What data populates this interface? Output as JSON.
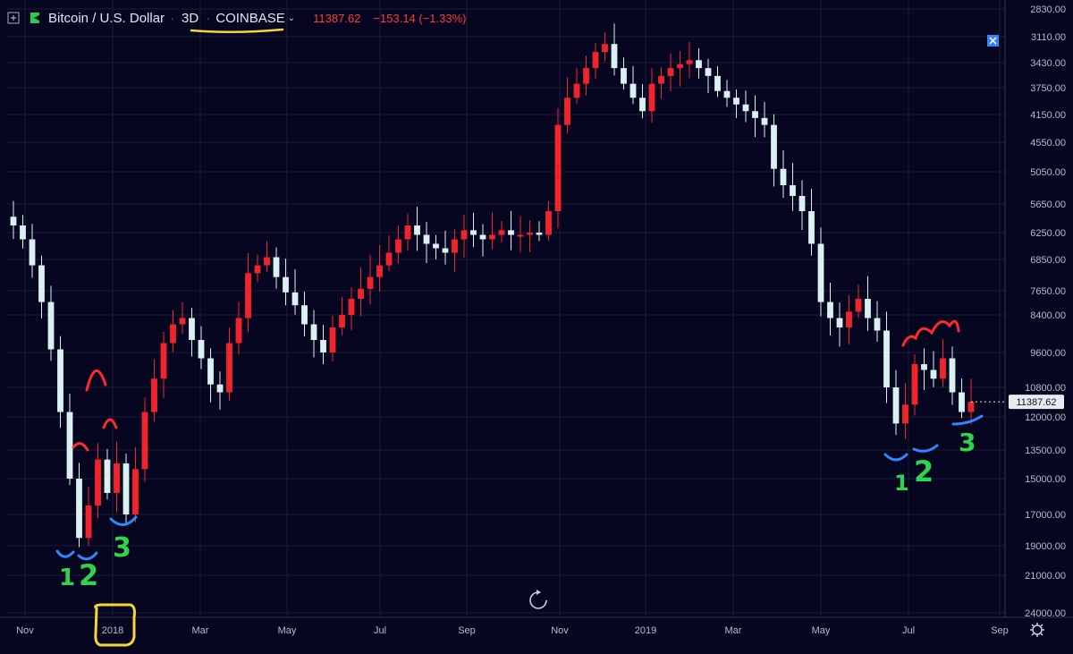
{
  "header": {
    "symbol": "Bitcoin / U.S. Dollar",
    "timeframe": "3D",
    "exchange": "COINBASE",
    "last_price": "11387.62",
    "change": "−153.14 (−1.33%)"
  },
  "colors": {
    "background": "#070620",
    "up": "#f2242b",
    "down": "#d9f1f1",
    "grid": "#1b1c38",
    "price_tag": "#e8ecf2",
    "annotation_blue": "#2f86ff",
    "annotation_green": "#2ed44c",
    "annotation_red": "#ff2a2a",
    "annotation_yellow": "#f4d63a"
  },
  "annotations": {
    "left": [
      "1",
      "2",
      "3"
    ],
    "right": [
      "1",
      "2",
      "3"
    ]
  },
  "chart_data": {
    "type": "candlestick",
    "y_axis": "inverted log price scale",
    "y_ticks": [
      "2830.00",
      "3110.00",
      "3430.00",
      "3750.00",
      "4150.00",
      "4550.00",
      "5050.00",
      "5650.00",
      "6250.00",
      "6850.00",
      "7650.00",
      "8400.00",
      "9600.00",
      "10800.00",
      "12000.00",
      "13500.00",
      "15000.00",
      "17000.00",
      "19000.00",
      "21000.00",
      "24000.00"
    ],
    "x_ticks": [
      "Nov",
      "2018",
      "Mar",
      "May",
      "Jul",
      "Sep",
      "Nov",
      "2019",
      "Mar",
      "May",
      "Jul",
      "Sep"
    ],
    "last_price": 11387.62,
    "close_path": [
      6100,
      6400,
      7000,
      8000,
      9500,
      11800,
      15000,
      18500,
      16500,
      14000,
      15800,
      14200,
      17000,
      14500,
      11800,
      10500,
      9300,
      8700,
      8500,
      9200,
      9800,
      10700,
      11000,
      9300,
      8500,
      7200,
      7000,
      6800,
      7300,
      7700,
      8100,
      8700,
      9200,
      9600,
      8800,
      8400,
      7900,
      7600,
      7300,
      7000,
      6700,
      6400,
      6100,
      6300,
      6500,
      6600,
      6700,
      6400,
      6200,
      6300,
      6400,
      6300,
      6200,
      6300,
      6300,
      6250,
      6300,
      5800,
      4300,
      3900,
      3700,
      3500,
      3300,
      3200,
      3500,
      3700,
      3900,
      4100,
      3700,
      3600,
      3500,
      3450,
      3400,
      3500,
      3600,
      3800,
      3900,
      4000,
      4100,
      4200,
      4300,
      5000,
      5300,
      5500,
      5800,
      6500,
      8000,
      8500,
      8800,
      8300,
      7900,
      8500,
      8900,
      10800,
      12300,
      11500,
      10000,
      10200,
      10500,
      9800,
      11000,
      11800,
      11387.62
    ]
  }
}
